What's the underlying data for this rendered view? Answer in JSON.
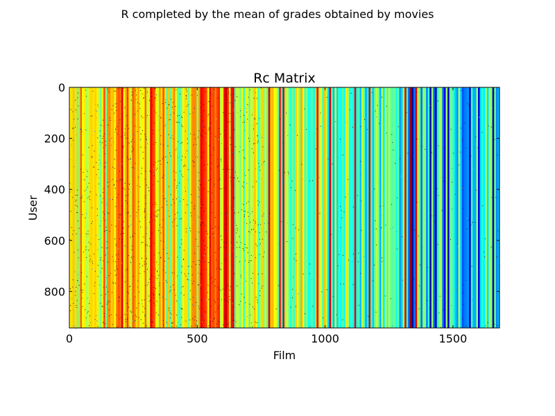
{
  "figure": {
    "suptitle": "R completed by the mean of grades obtained by movies"
  },
  "chart_data": {
    "type": "heatmap",
    "title": "Rc Matrix",
    "xlabel": "Film",
    "ylabel": "User",
    "xlim": [
      0,
      1682
    ],
    "ylim": [
      943,
      0
    ],
    "x_ticks": [
      0,
      500,
      1000,
      1500
    ],
    "x_tick_labels": [
      "0",
      "500",
      "1000",
      "1500"
    ],
    "y_ticks": [
      0,
      200,
      400,
      600,
      800
    ],
    "y_tick_labels": [
      "0",
      "200",
      "400",
      "600",
      "800"
    ],
    "colormap": "jet",
    "value_range": [
      1,
      5
    ],
    "columns_mostly_constant": true,
    "grid": false,
    "colors": {
      "background": "#ffffff",
      "frame": "#000000",
      "high": "#ff4000",
      "upper": "#ffd000",
      "mid": "#bfff40",
      "low": "#40ffbf",
      "lowest": "#0000c0"
    }
  }
}
